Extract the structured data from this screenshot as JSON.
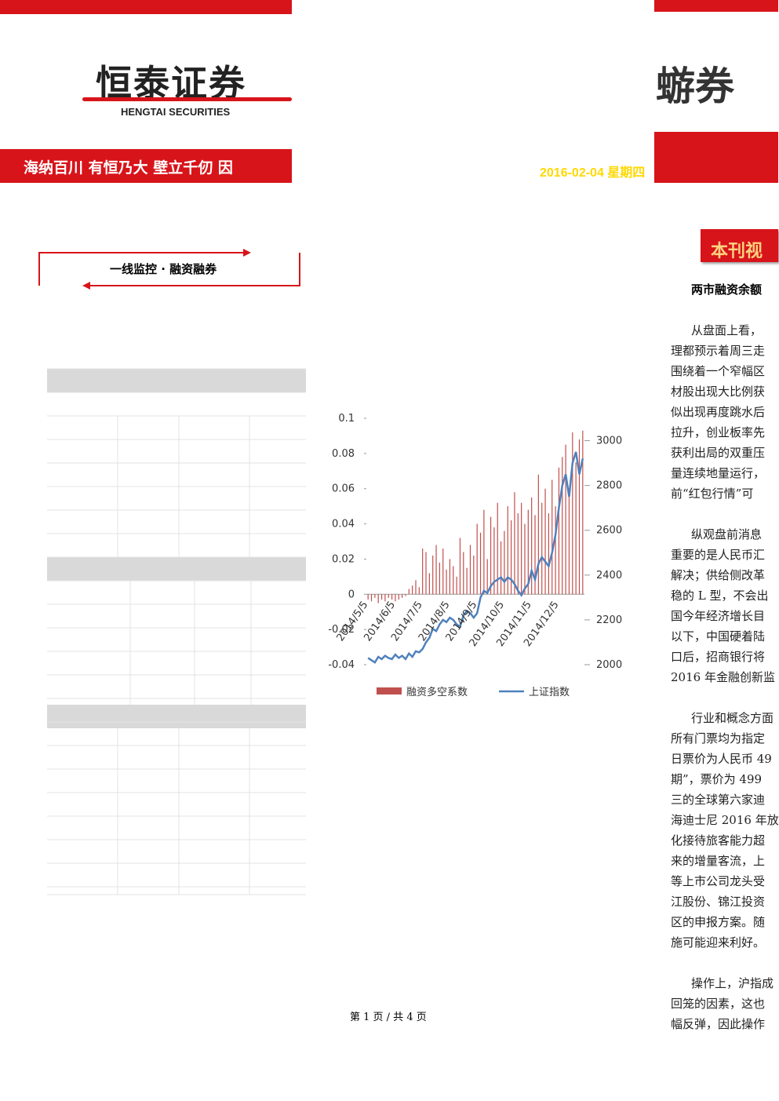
{
  "header": {
    "logo": "恒泰证券",
    "logo_en": "HENGTAI SECURITIES",
    "slogan": "海纳百川 有恒乃大 壁立千仞 因",
    "logo_right": "蝣券",
    "date": "2016-02-04 星期四"
  },
  "sidebar": {
    "title": "一线监控 · 融资融券"
  },
  "chart": {
    "type": "bar_line",
    "categories": [
      "2014/5/5",
      null,
      null,
      null,
      null,
      null,
      null,
      null,
      "2014/6/5",
      null,
      null,
      null,
      null,
      null,
      null,
      null,
      "2014/7/5",
      null,
      null,
      null,
      null,
      null,
      null,
      null,
      "2014/8/5",
      null,
      null,
      null,
      null,
      null,
      null,
      null,
      "2014/9/5",
      null,
      null,
      null,
      null,
      null,
      null,
      null,
      "2014/10/5",
      null,
      null,
      null,
      null,
      null,
      null,
      null,
      "2014/11/5",
      null,
      null,
      null,
      null,
      null,
      null,
      null,
      "2014/12/5",
      null,
      null,
      null,
      null,
      null,
      null,
      null
    ],
    "series": [
      {
        "name": "融资多空系数",
        "color": "#c0504d",
        "kind": "bar",
        "values": [
          -0.003,
          -0.004,
          -0.002,
          -0.005,
          -0.003,
          -0.004,
          -0.002,
          -0.003,
          -0.004,
          -0.003,
          -0.002,
          -0.001,
          0.003,
          0.005,
          0.008,
          0.004,
          0.026,
          0.024,
          0.012,
          0.022,
          0.028,
          0.018,
          0.026,
          0.014,
          0.02,
          0.016,
          0.01,
          0.032,
          0.024,
          0.015,
          0.028,
          0.022,
          0.04,
          0.035,
          0.048,
          0.02,
          0.044,
          0.038,
          0.052,
          0.03,
          0.036,
          0.05,
          0.042,
          0.058,
          0.046,
          0.052,
          0.04,
          0.048,
          0.055,
          0.045,
          0.068,
          0.052,
          0.06,
          0.046,
          0.065,
          0.05,
          0.072,
          0.078,
          0.085,
          0.06,
          0.092,
          0.075,
          0.088,
          0.093
        ]
      },
      {
        "name": "上证指数",
        "color": "#4f81bd",
        "kind": "line",
        "axis": "y2",
        "values": [
          2030,
          2020,
          2010,
          2035,
          2025,
          2040,
          2030,
          2025,
          2045,
          2030,
          2040,
          2025,
          2050,
          2035,
          2060,
          2055,
          2070,
          2100,
          2120,
          2160,
          2150,
          2180,
          2200,
          2190,
          2210,
          2200,
          2180,
          2170,
          2220,
          2240,
          2230,
          2210,
          2230,
          2300,
          2330,
          2320,
          2350,
          2370,
          2380,
          2390,
          2370,
          2390,
          2380,
          2360,
          2330,
          2310,
          2340,
          2360,
          2420,
          2380,
          2450,
          2480,
          2460,
          2440,
          2500,
          2580,
          2700,
          2800,
          2850,
          2750,
          2900,
          2950,
          2850,
          2920
        ]
      }
    ],
    "ylim": [
      -0.04,
      0.1
    ],
    "yticks": [
      -0.04,
      -0.02,
      0,
      0.02,
      0.04,
      0.06,
      0.08,
      0.1
    ],
    "y2lim": [
      2000,
      3100
    ],
    "y2ticks": [
      2000,
      2200,
      2400,
      2600,
      2800,
      3000
    ]
  },
  "article": {
    "section": "本刊视",
    "headline": "两市融资余额",
    "paragraphs": [
      [
        "从盘面上看，",
        "理都预示着周三走",
        "围绕着一个窄幅区",
        "材股出现大比例获",
        "似出现再度跳水后",
        "拉升，创业板率先",
        "获利出局的双重压",
        "量连续地量运行，",
        "前“红包行情”可"
      ],
      [
        "纵观盘前消息",
        "重要的是人民币汇",
        "解决；供给侧改革",
        "稳的 L 型，不会出",
        "国今年经济增长目",
        "以下，中国硬着陆",
        "口后，招商银行将",
        "2016 年金融创新监"
      ],
      [
        "行业和概念方面",
        "所有门票均为指定",
        "日票价为人民币 49",
        "期”，票价为 499",
        "三的全球第六家迪",
        "海迪士尼 2016 年放",
        "化接待旅客能力超",
        "来的增量客流，上",
        "等上市公司龙头受",
        "江股份、锦江投资",
        "区的申报方案。随",
        "施可能迎来利好。"
      ],
      [
        "操作上，沪指成",
        "回笼的因素，这也",
        "幅反弹，因此操作"
      ]
    ]
  },
  "footer": {
    "page": "第 1 页 / 共 4 页"
  }
}
